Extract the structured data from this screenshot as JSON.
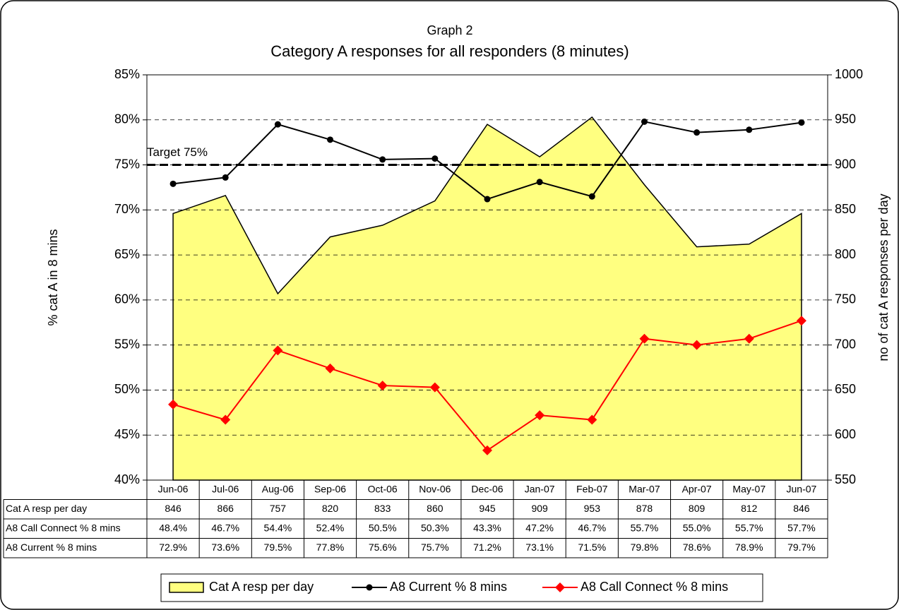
{
  "chart_data": {
    "type": "line",
    "title": "Graph 2",
    "subtitle": "Category A responses for all responders (8 minutes)",
    "ylabel": "% cat A in 8 mins",
    "y2label": "no of cat A responses per day",
    "categories": [
      "Jun-06",
      "Jul-06",
      "Aug-06",
      "Sep-06",
      "Oct-06",
      "Nov-06",
      "Dec-06",
      "Jan-07",
      "Feb-07",
      "Mar-07",
      "Apr-07",
      "May-07",
      "Jun-07"
    ],
    "ylim": [
      40,
      85
    ],
    "yticks": [
      {
        "value": 40,
        "label": "40%"
      },
      {
        "value": 45,
        "label": "45%"
      },
      {
        "value": 50,
        "label": "50%"
      },
      {
        "value": 55,
        "label": "55%"
      },
      {
        "value": 60,
        "label": "60%"
      },
      {
        "value": 65,
        "label": "65%"
      },
      {
        "value": 70,
        "label": "70%"
      },
      {
        "value": 75,
        "label": "75%"
      },
      {
        "value": 80,
        "label": "80%"
      },
      {
        "value": 85,
        "label": "85%"
      }
    ],
    "y2lim": [
      550,
      1000
    ],
    "y2ticks": [
      550,
      600,
      650,
      700,
      750,
      800,
      850,
      900,
      950,
      1000
    ],
    "grid": true,
    "target": {
      "label": "Target 75%",
      "value": 75
    },
    "series": [
      {
        "name": "Cat A resp per day",
        "type": "area",
        "axis": "y2",
        "color": "#ffff80",
        "values": [
          846,
          866,
          757,
          820,
          833,
          860,
          945,
          909,
          953,
          878,
          809,
          812,
          846
        ]
      },
      {
        "name": "A8 Current % 8 mins",
        "type": "line",
        "color": "#000000",
        "values": [
          72.9,
          73.6,
          79.5,
          77.8,
          75.6,
          75.7,
          71.2,
          73.1,
          71.5,
          79.8,
          78.6,
          78.9,
          79.7
        ],
        "value_labels": [
          "72.9%",
          "73.6%",
          "79.5%",
          "77.8%",
          "75.6%",
          "75.7%",
          "71.2%",
          "73.1%",
          "71.5%",
          "79.8%",
          "78.6%",
          "78.9%",
          "79.7%"
        ]
      },
      {
        "name": "A8 Call Connect % 8 mins",
        "type": "line",
        "color": "#ff0000",
        "values": [
          48.4,
          46.7,
          54.4,
          52.4,
          50.5,
          50.3,
          43.3,
          47.2,
          46.7,
          55.7,
          55.0,
          55.7,
          57.7
        ],
        "value_labels": [
          "48.4%",
          "46.7%",
          "54.4%",
          "52.4%",
          "50.5%",
          "50.3%",
          "43.3%",
          "47.2%",
          "46.7%",
          "55.7%",
          "55.0%",
          "55.7%",
          "57.7%"
        ]
      }
    ]
  }
}
